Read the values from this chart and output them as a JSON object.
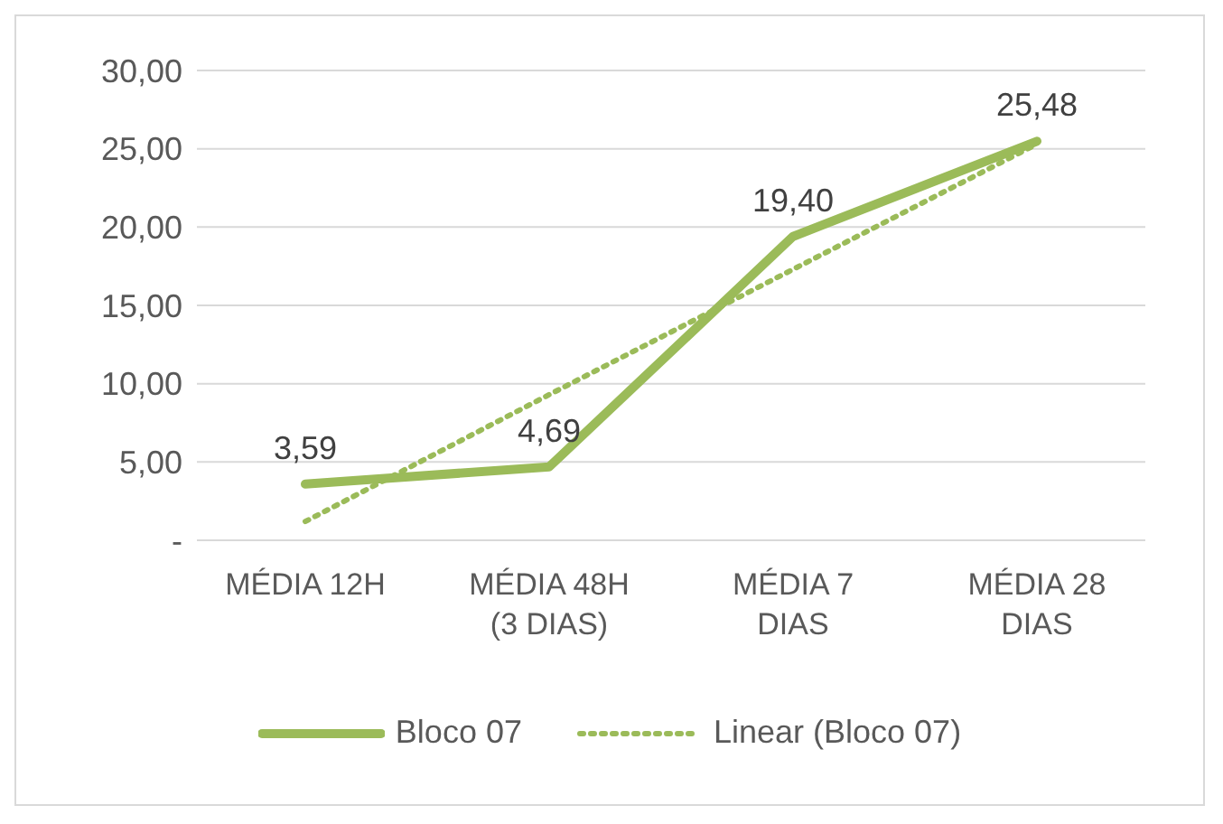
{
  "chart_data": {
    "type": "line",
    "categories": [
      "MÉDIA 12H",
      "MÉDIA 48H (3 DIAS)",
      "MÉDIA 7 DIAS",
      "MÉDIA 28 DIAS"
    ],
    "series": [
      {
        "name": "Bloco 07",
        "color": "#9bbb59",
        "values": [
          3.59,
          4.69,
          19.4,
          25.48
        ],
        "value_labels": [
          "3,59",
          "4,69",
          "19,40",
          "25,48"
        ],
        "line_style": "solid"
      },
      {
        "name": "Linear (Bloco 07)",
        "color": "#9bbb59",
        "values": [
          1.2,
          9.3,
          17.3,
          25.3
        ],
        "line_style": "dotted"
      }
    ],
    "ylim": [
      0,
      30
    ],
    "yticks": [
      {
        "value": 0,
        "label": "-"
      },
      {
        "value": 5,
        "label": "5,00"
      },
      {
        "value": 10,
        "label": "10,00"
      },
      {
        "value": 15,
        "label": "15,00"
      },
      {
        "value": 20,
        "label": "20,00"
      },
      {
        "value": 25,
        "label": "25,00"
      },
      {
        "value": 30,
        "label": "30,00"
      }
    ],
    "grid": "y",
    "legend": "bottom",
    "marker": "none"
  }
}
